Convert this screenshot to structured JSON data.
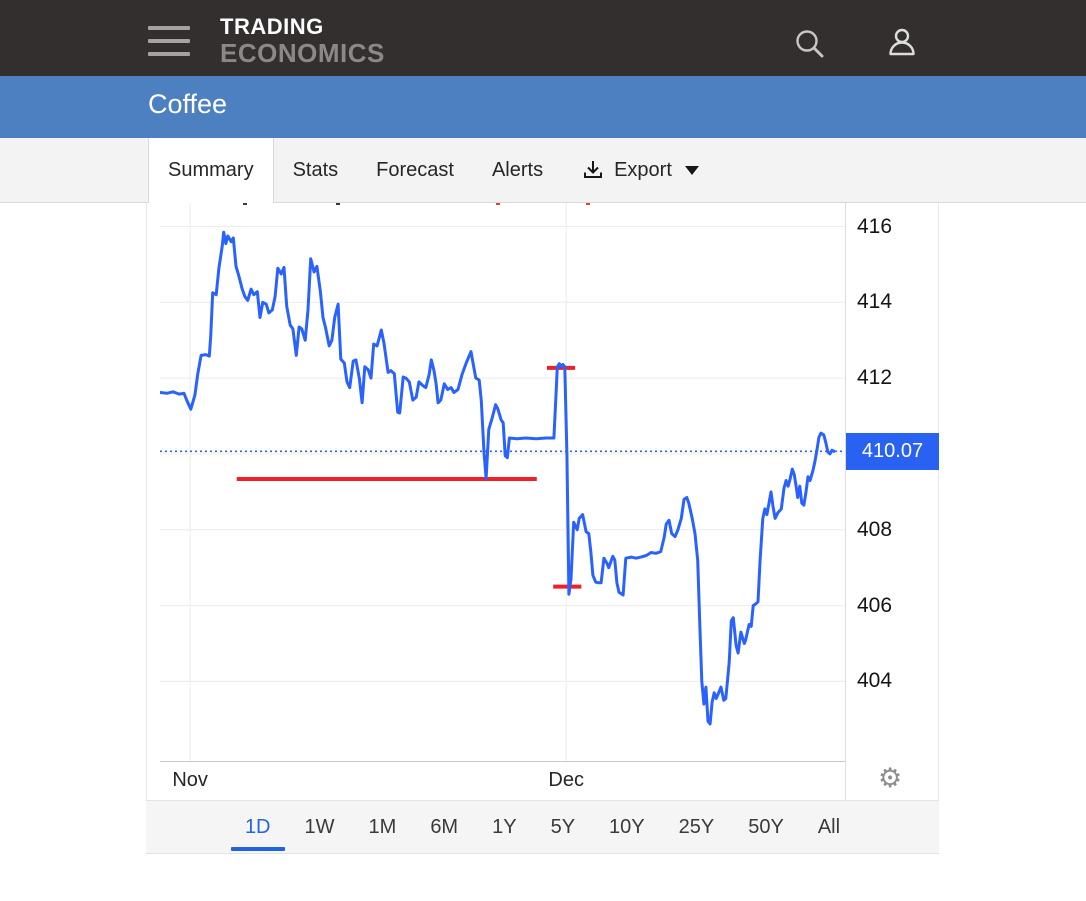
{
  "header": {
    "brand_line1": "TRADING",
    "brand_line2": "ECONOMICS"
  },
  "title_bar": {
    "title": "Coffee"
  },
  "tabs": {
    "items": [
      {
        "label": "Summary",
        "active": true
      },
      {
        "label": "Stats",
        "active": false
      },
      {
        "label": "Forecast",
        "active": false
      },
      {
        "label": "Alerts",
        "active": false
      }
    ],
    "export_label": "Export"
  },
  "price_badge": {
    "label": "410.07"
  },
  "range_selector": {
    "items": [
      {
        "label": "1D",
        "active": true
      },
      {
        "label": "1W",
        "active": false
      },
      {
        "label": "1M",
        "active": false
      },
      {
        "label": "6M",
        "active": false
      },
      {
        "label": "1Y",
        "active": false
      },
      {
        "label": "5Y",
        "active": false
      },
      {
        "label": "10Y",
        "active": false
      },
      {
        "label": "25Y",
        "active": false
      },
      {
        "label": "50Y",
        "active": false
      },
      {
        "label": "All",
        "active": false
      }
    ]
  },
  "colors": {
    "header_bg": "#332f2f",
    "title_band_bg": "#4d80c0",
    "line_blue": "#2962ff",
    "badge_blue": "#2962f2",
    "reference_red": "#ef2127",
    "range_active_blue": "#2264e0",
    "gridline": "#ececec"
  },
  "chart_data": {
    "type": "line",
    "title": "",
    "xlabel": "",
    "ylabel": "",
    "x_axis_type": "time",
    "last_price": 410.07,
    "ylim": [
      401.9,
      416.62
    ],
    "y_tick_labels": [
      416,
      414,
      412,
      408,
      406,
      404
    ],
    "y_gridlines": [
      404,
      406,
      408,
      410,
      412,
      414,
      416
    ],
    "x_labels": [
      {
        "label": "Nov",
        "f": 0.044
      },
      {
        "label": "Dec",
        "f": 0.593
      }
    ],
    "last_price_line": {
      "value": 410.07,
      "style": "dotted",
      "color": "#2962ff"
    },
    "reference_lines_red": [
      {
        "value": 409.34,
        "f0": 0.112,
        "f1": 0.55
      },
      {
        "value": 412.27,
        "f0": 0.565,
        "f1": 0.606
      },
      {
        "value": 406.5,
        "f0": 0.574,
        "f1": 0.615
      }
    ],
    "clipped_legend_marks": [
      {
        "f": 0.121,
        "color": "#3a3a3a"
      },
      {
        "f": 0.257,
        "color": "#3a3a3a"
      },
      {
        "f": 0.49,
        "color": "#d94040"
      },
      {
        "f": 0.622,
        "color": "#d94040"
      }
    ],
    "series": [
      {
        "name": "Coffee",
        "color": "#2962ff",
        "points": [
          [
            0.0,
            411.62
          ],
          [
            0.01,
            411.6
          ],
          [
            0.019,
            411.64
          ],
          [
            0.028,
            411.58
          ],
          [
            0.035,
            411.6
          ],
          [
            0.039,
            411.42
          ],
          [
            0.045,
            411.18
          ],
          [
            0.051,
            411.55
          ],
          [
            0.055,
            412.1
          ],
          [
            0.06,
            412.6
          ],
          [
            0.067,
            412.62
          ],
          [
            0.072,
            412.58
          ],
          [
            0.074,
            413.1
          ],
          [
            0.077,
            414.25
          ],
          [
            0.082,
            414.2
          ],
          [
            0.086,
            414.9
          ],
          [
            0.091,
            415.5
          ],
          [
            0.093,
            415.85
          ],
          [
            0.096,
            415.55
          ],
          [
            0.099,
            415.75
          ],
          [
            0.104,
            415.6
          ],
          [
            0.107,
            415.7
          ],
          [
            0.111,
            414.95
          ],
          [
            0.115,
            414.7
          ],
          [
            0.12,
            414.35
          ],
          [
            0.124,
            414.15
          ],
          [
            0.128,
            414.05
          ],
          [
            0.133,
            414.35
          ],
          [
            0.137,
            414.2
          ],
          [
            0.142,
            414.28
          ],
          [
            0.146,
            413.6
          ],
          [
            0.15,
            414.0
          ],
          [
            0.155,
            413.95
          ],
          [
            0.159,
            413.72
          ],
          [
            0.164,
            413.8
          ],
          [
            0.168,
            414.15
          ],
          [
            0.172,
            414.9
          ],
          [
            0.177,
            414.75
          ],
          [
            0.181,
            414.92
          ],
          [
            0.185,
            413.9
          ],
          [
            0.19,
            413.4
          ],
          [
            0.194,
            413.3
          ],
          [
            0.199,
            412.6
          ],
          [
            0.203,
            413.35
          ],
          [
            0.207,
            413.3
          ],
          [
            0.212,
            413.0
          ],
          [
            0.216,
            413.8
          ],
          [
            0.22,
            415.15
          ],
          [
            0.225,
            414.8
          ],
          [
            0.229,
            414.95
          ],
          [
            0.234,
            414.3
          ],
          [
            0.238,
            413.6
          ],
          [
            0.242,
            413.3
          ],
          [
            0.247,
            412.85
          ],
          [
            0.251,
            413.0
          ],
          [
            0.255,
            413.6
          ],
          [
            0.26,
            413.95
          ],
          [
            0.264,
            412.5
          ],
          [
            0.269,
            412.4
          ],
          [
            0.273,
            411.9
          ],
          [
            0.277,
            411.75
          ],
          [
            0.282,
            412.45
          ],
          [
            0.286,
            412.48
          ],
          [
            0.291,
            412.0
          ],
          [
            0.295,
            411.35
          ],
          [
            0.299,
            412.3
          ],
          [
            0.304,
            412.22
          ],
          [
            0.308,
            412.0
          ],
          [
            0.312,
            412.9
          ],
          [
            0.317,
            412.85
          ],
          [
            0.323,
            413.27
          ],
          [
            0.327,
            412.92
          ],
          [
            0.333,
            412.15
          ],
          [
            0.337,
            412.2
          ],
          [
            0.342,
            412.12
          ],
          [
            0.347,
            411.1
          ],
          [
            0.35,
            411.08
          ],
          [
            0.355,
            412.03
          ],
          [
            0.359,
            412.0
          ],
          [
            0.364,
            411.9
          ],
          [
            0.369,
            411.42
          ],
          [
            0.374,
            411.5
          ],
          [
            0.378,
            411.9
          ],
          [
            0.384,
            411.8
          ],
          [
            0.388,
            411.75
          ],
          [
            0.393,
            412.1
          ],
          [
            0.396,
            412.48
          ],
          [
            0.4,
            412.2
          ],
          [
            0.403,
            411.85
          ],
          [
            0.406,
            411.35
          ],
          [
            0.41,
            411.42
          ],
          [
            0.415,
            411.85
          ],
          [
            0.42,
            411.7
          ],
          [
            0.425,
            411.75
          ],
          [
            0.429,
            411.62
          ],
          [
            0.435,
            411.7
          ],
          [
            0.441,
            412.1
          ],
          [
            0.447,
            412.4
          ],
          [
            0.454,
            412.7
          ],
          [
            0.458,
            412.3
          ],
          [
            0.461,
            412.0
          ],
          [
            0.466,
            411.95
          ],
          [
            0.469,
            411.4
          ],
          [
            0.473,
            410.05
          ],
          [
            0.476,
            409.35
          ],
          [
            0.48,
            410.65
          ],
          [
            0.485,
            410.95
          ],
          [
            0.49,
            411.3
          ],
          [
            0.493,
            411.2
          ],
          [
            0.498,
            410.9
          ],
          [
            0.501,
            410.82
          ],
          [
            0.504,
            409.95
          ],
          [
            0.507,
            409.9
          ],
          [
            0.51,
            410.42
          ],
          [
            0.521,
            410.4
          ],
          [
            0.534,
            410.42
          ],
          [
            0.549,
            410.4
          ],
          [
            0.564,
            410.42
          ],
          [
            0.575,
            410.42
          ],
          [
            0.578,
            411.5
          ],
          [
            0.58,
            412.3
          ],
          [
            0.583,
            412.38
          ],
          [
            0.585,
            412.3
          ],
          [
            0.588,
            412.36
          ],
          [
            0.591,
            412.3
          ],
          [
            0.594,
            410.0
          ],
          [
            0.596,
            407.5
          ],
          [
            0.597,
            406.3
          ],
          [
            0.6,
            406.7
          ],
          [
            0.604,
            408.2
          ],
          [
            0.609,
            408.0
          ],
          [
            0.612,
            408.3
          ],
          [
            0.617,
            408.4
          ],
          [
            0.622,
            407.95
          ],
          [
            0.626,
            407.9
          ],
          [
            0.629,
            407.4
          ],
          [
            0.632,
            406.8
          ],
          [
            0.636,
            406.62
          ],
          [
            0.641,
            406.6
          ],
          [
            0.644,
            406.6
          ],
          [
            0.648,
            407.25
          ],
          [
            0.653,
            407.1
          ],
          [
            0.655,
            407.0
          ],
          [
            0.661,
            407.3
          ],
          [
            0.664,
            407.2
          ],
          [
            0.667,
            406.6
          ],
          [
            0.67,
            406.35
          ],
          [
            0.676,
            406.28
          ],
          [
            0.68,
            407.25
          ],
          [
            0.688,
            407.28
          ],
          [
            0.695,
            407.25
          ],
          [
            0.702,
            407.28
          ],
          [
            0.71,
            407.32
          ],
          [
            0.717,
            407.4
          ],
          [
            0.724,
            407.38
          ],
          [
            0.731,
            407.42
          ],
          [
            0.736,
            407.8
          ],
          [
            0.739,
            408.15
          ],
          [
            0.743,
            408.25
          ],
          [
            0.747,
            407.9
          ],
          [
            0.752,
            407.82
          ],
          [
            0.756,
            408.0
          ],
          [
            0.761,
            408.3
          ],
          [
            0.765,
            408.8
          ],
          [
            0.769,
            408.85
          ],
          [
            0.772,
            408.7
          ],
          [
            0.777,
            408.3
          ],
          [
            0.781,
            407.9
          ],
          [
            0.785,
            407.2
          ],
          [
            0.788,
            405.5
          ],
          [
            0.791,
            404.0
          ],
          [
            0.794,
            403.4
          ],
          [
            0.797,
            403.85
          ],
          [
            0.8,
            402.95
          ],
          [
            0.803,
            402.88
          ],
          [
            0.806,
            403.45
          ],
          [
            0.809,
            403.7
          ],
          [
            0.812,
            403.55
          ],
          [
            0.816,
            403.72
          ],
          [
            0.819,
            403.85
          ],
          [
            0.823,
            403.5
          ],
          [
            0.826,
            403.55
          ],
          [
            0.831,
            404.5
          ],
          [
            0.834,
            405.6
          ],
          [
            0.837,
            405.68
          ],
          [
            0.841,
            404.95
          ],
          [
            0.844,
            404.75
          ],
          [
            0.848,
            405.3
          ],
          [
            0.853,
            405.0
          ],
          [
            0.855,
            405.1
          ],
          [
            0.86,
            405.5
          ],
          [
            0.863,
            405.45
          ],
          [
            0.866,
            406.0
          ],
          [
            0.87,
            406.05
          ],
          [
            0.873,
            406.1
          ],
          [
            0.876,
            407.2
          ],
          [
            0.88,
            408.3
          ],
          [
            0.883,
            408.55
          ],
          [
            0.886,
            408.4
          ],
          [
            0.889,
            408.7
          ],
          [
            0.892,
            409.0
          ],
          [
            0.895,
            408.6
          ],
          [
            0.898,
            408.3
          ],
          [
            0.902,
            408.45
          ],
          [
            0.907,
            408.55
          ],
          [
            0.911,
            409.1
          ],
          [
            0.914,
            409.3
          ],
          [
            0.917,
            409.15
          ],
          [
            0.92,
            409.35
          ],
          [
            0.923,
            409.6
          ],
          [
            0.926,
            409.45
          ],
          [
            0.929,
            409.1
          ],
          [
            0.931,
            408.85
          ],
          [
            0.934,
            409.15
          ],
          [
            0.937,
            408.7
          ],
          [
            0.94,
            408.65
          ],
          [
            0.943,
            409.0
          ],
          [
            0.946,
            409.4
          ],
          [
            0.949,
            409.3
          ],
          [
            0.953,
            409.55
          ],
          [
            0.956,
            409.8
          ],
          [
            0.959,
            410.1
          ],
          [
            0.962,
            410.45
          ],
          [
            0.965,
            410.55
          ],
          [
            0.969,
            410.5
          ],
          [
            0.972,
            410.3
          ],
          [
            0.975,
            410.05
          ],
          [
            0.978,
            410.0
          ],
          [
            0.981,
            410.1
          ],
          [
            0.984,
            410.07
          ]
        ]
      }
    ]
  }
}
